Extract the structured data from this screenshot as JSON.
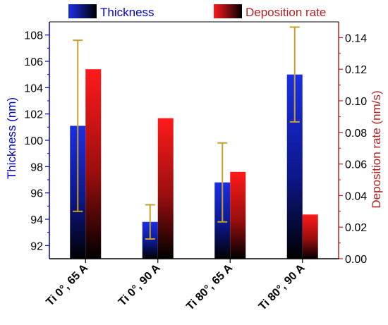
{
  "chart_data": {
    "type": "bar",
    "categories": [
      "Ti 0°, 65 A",
      "Ti 0°, 90 A",
      "Ti 80°, 65 A",
      "Ti 80°, 90 A"
    ],
    "series": [
      {
        "name": "Thickness",
        "axis": "left",
        "values": [
          101.1,
          93.8,
          96.8,
          105.0
        ],
        "error": [
          6.5,
          1.3,
          3.0,
          3.6
        ],
        "color": "#1a2fe6"
      },
      {
        "name": "Deposition rate",
        "axis": "right",
        "values": [
          0.12,
          0.089,
          0.055,
          0.028
        ],
        "color": "#ff1a1a"
      }
    ],
    "ylabel": "Thickness (nm)",
    "ylabel_right": "Deposition rate (nm/s)",
    "ylim": [
      91,
      109
    ],
    "ylim_right": [
      0,
      0.15
    ],
    "yticks": [
      "92",
      "94",
      "96",
      "98",
      "100",
      "102",
      "104",
      "106",
      "108"
    ],
    "yticks_right": [
      "0.00",
      "0.02",
      "0.04",
      "0.06",
      "0.08",
      "0.10",
      "0.12",
      "0.14"
    ],
    "legend_placement": "top",
    "colors": {
      "left_axis": "#0000cc",
      "right_axis": "#b22222",
      "error_bar": "#c8a02a",
      "bar_dark": "#000000"
    }
  }
}
